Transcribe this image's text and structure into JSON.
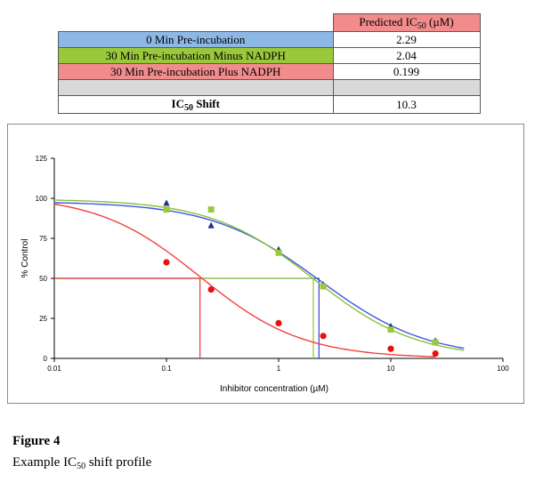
{
  "table": {
    "header_pre": "Predicted IC",
    "header_sub": "50",
    "header_post": " (µM)",
    "header_color": "#f28b8b",
    "rows": [
      {
        "label": "0 Min Pre-incubation",
        "value": "2.29",
        "color": "#8db8e6"
      },
      {
        "label": "30 Min Pre-incubation  Minus NADPH",
        "value": "2.04",
        "color": "#99c93a"
      },
      {
        "label": "30 Min Pre-incubation Plus NADPH",
        "value": "0.199",
        "color": "#f28b8b"
      }
    ],
    "shift_label_pre": "IC",
    "shift_label_sub": "50",
    "shift_label_post": " Shift",
    "shift_value": "10.3"
  },
  "chart_data": {
    "type": "scatter",
    "xlabel": "Inhibitor concentration (µM)",
    "ylabel": "% Control",
    "xscale": "log",
    "xlim": [
      0.01,
      100
    ],
    "ylim": [
      0,
      125
    ],
    "xticks": [
      0.01,
      0.1,
      1,
      10,
      100
    ],
    "xtick_labels": [
      "0.01",
      "0.1",
      "1",
      "10",
      "100"
    ],
    "yticks": [
      0,
      25,
      50,
      75,
      100,
      125
    ],
    "ytick_labels": [
      "0",
      "25",
      "50",
      "75",
      "100",
      "125"
    ],
    "series": [
      {
        "name": "0 Min Pre-incubation",
        "color": "#1f2f8f",
        "line_color": "#3f55e0",
        "marker": "triangle",
        "x": [
          0.1,
          0.25,
          1,
          2.5,
          10,
          25
        ],
        "y": [
          97,
          83,
          68,
          46,
          20,
          11
        ],
        "fit": {
          "top": 98,
          "ic50": 2.29,
          "hill": 0.9,
          "x_range": [
            0.01,
            45
          ]
        }
      },
      {
        "name": "30 Min Pre-incubation  Minus NADPH",
        "color": "#99c93a",
        "line_color": "#88c13a",
        "marker": "square",
        "x": [
          0.1,
          0.25,
          1,
          2.5,
          10,
          25
        ],
        "y": [
          93,
          93,
          66,
          45,
          18,
          10
        ],
        "fit": {
          "top": 99.5,
          "ic50": 2.04,
          "hill": 0.95,
          "x_range": [
            0.01,
            45
          ]
        }
      },
      {
        "name": "30 Min Pre-incubation Plus NADPH",
        "color": "#e81010",
        "line_color": "#f04040",
        "marker": "circle",
        "x": [
          0.1,
          0.25,
          1,
          2.5,
          10,
          25
        ],
        "y": [
          60,
          43,
          22,
          14,
          6,
          3
        ],
        "fit": {
          "top": 102,
          "ic50": 0.199,
          "hill": 0.95,
          "x_range": [
            0.01,
            25
          ]
        }
      }
    ],
    "ic50_guides": [
      {
        "x": 2.29,
        "y": 50,
        "color": "#3f55e0"
      },
      {
        "x": 2.04,
        "y": 50,
        "color": "#99c93a"
      },
      {
        "x": 0.199,
        "y": 50,
        "color": "#f04040"
      }
    ]
  },
  "caption": {
    "title": "Figure 4",
    "text_pre": "Example IC",
    "text_sub": "50",
    "text_post": " shift profile"
  }
}
